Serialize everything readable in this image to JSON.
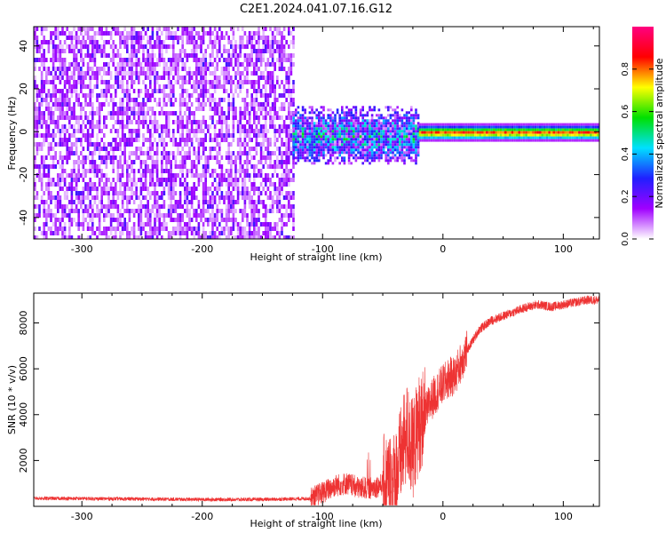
{
  "title": "C2E1.2024.041.07.16.G12",
  "chart_data": [
    {
      "type": "heatmap",
      "xlabel": "Height of straight line (km)",
      "ylabel": "Frequency (Hz)",
      "xlim": [
        -340,
        130
      ],
      "ylim": [
        -50,
        49
      ],
      "xticks": [
        -300,
        -200,
        -100,
        0,
        100
      ],
      "yticks": [
        -40,
        -20,
        0,
        20,
        40
      ],
      "colorbar": {
        "label": "Normalized spectral amplitude",
        "range": [
          0.0,
          1.0
        ],
        "ticks": [
          0.0,
          0.2,
          0.4,
          0.6,
          0.8
        ],
        "colormap": [
          "#ffffff",
          "#a000ff",
          "#2020ff",
          "#00e0ff",
          "#00e000",
          "#ffff00",
          "#ff0000",
          "#ff0080"
        ]
      },
      "regions": [
        {
          "x": [
            -340,
            -125
          ],
          "freq": [
            -50,
            49
          ],
          "amplitude": [
            0.0,
            0.15
          ]
        },
        {
          "x": [
            -125,
            -20
          ],
          "freq": [
            -15,
            12
          ],
          "amplitude": [
            0.05,
            0.6
          ]
        },
        {
          "x": [
            -20,
            130
          ],
          "freq": [
            -4,
            4
          ],
          "amplitude": [
            0.4,
            0.95
          ]
        }
      ]
    },
    {
      "type": "line",
      "xlabel": "Height of straight line (km)",
      "ylabel": "SNR (10 * v/v)",
      "xlim": [
        -340,
        130
      ],
      "ylim": [
        0,
        9300
      ],
      "xticks": [
        -300,
        -200,
        -100,
        0,
        100
      ],
      "yticks": [
        2000,
        4000,
        6000,
        8000
      ],
      "series": [
        {
          "color": "#ee3333",
          "x": [
            -340,
            -300,
            -250,
            -200,
            -150,
            -110,
            -100,
            -90,
            -80,
            -70,
            -60,
            -50,
            -40,
            -30,
            -25,
            -20,
            -15,
            -10,
            -5,
            0,
            5,
            10,
            15,
            20,
            30,
            40,
            50,
            60,
            70,
            80,
            90,
            100,
            110,
            120,
            130
          ],
          "y": [
            350,
            340,
            320,
            300,
            300,
            340,
            600,
            900,
            1000,
            800,
            800,
            950,
            1200,
            3200,
            2500,
            3600,
            4000,
            4600,
            5000,
            5300,
            5600,
            5700,
            6300,
            6800,
            7700,
            8100,
            8300,
            8500,
            8700,
            8800,
            8700,
            8800,
            8900,
            9000,
            9000
          ],
          "noise_band": [
            {
              "x": [
                -340,
                -110
              ],
              "amp": 80
            },
            {
              "x": [
                -110,
                -50
              ],
              "amp": 500
            },
            {
              "x": [
                -50,
                -15
              ],
              "amp": 2200
            },
            {
              "x": [
                -15,
                20
              ],
              "amp": 900
            },
            {
              "x": [
                20,
                130
              ],
              "amp": 200
            }
          ]
        }
      ]
    }
  ]
}
